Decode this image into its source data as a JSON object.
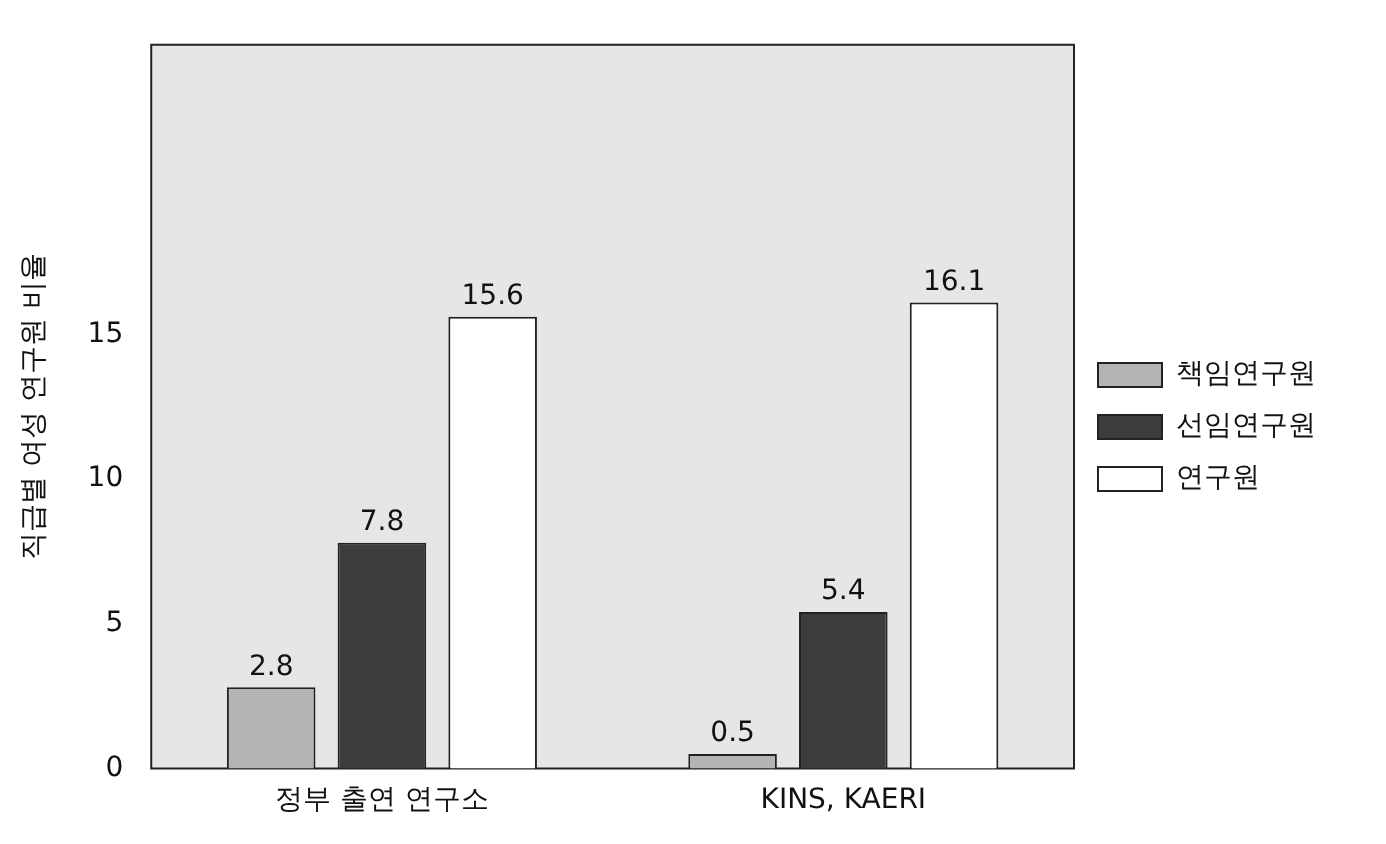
{
  "chart_data": {
    "type": "bar",
    "ylabel": "직급별 여성 연구원 비율",
    "categories": [
      "정부 출연 연구소",
      "KINS, KAERI"
    ],
    "series": [
      {
        "name": "책임연구원",
        "color": "#b4b4b4",
        "values": [
          2.8,
          0.5
        ]
      },
      {
        "name": "선임연구원",
        "color": "#3c3c3c",
        "values": [
          7.8,
          5.4
        ]
      },
      {
        "name": "연구원",
        "color": "#ffffff",
        "values": [
          15.6,
          16.1
        ]
      }
    ],
    "ylim": [
      0,
      25
    ],
    "yticks": [
      0,
      5,
      10,
      15
    ],
    "grid": false,
    "legend": "right",
    "data_labels": true
  }
}
